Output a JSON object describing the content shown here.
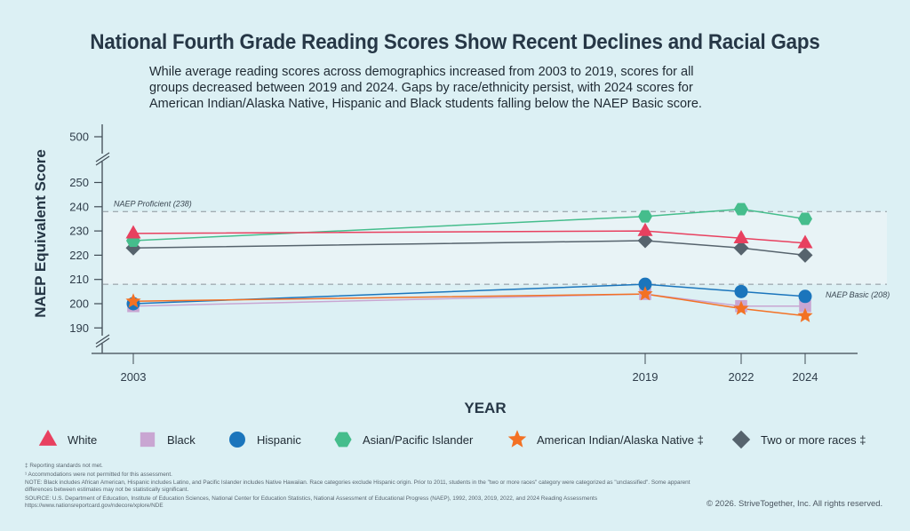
{
  "header": {
    "title": "National Fourth Grade Reading Scores Show Recent Declines and Racial Gaps",
    "subtitle_lines": [
      "While average reading scores across demographics increased from 2003 to 2019, scores for all",
      "groups decreased between 2019 and 2024. Gaps by race/ethnicity persist, with 2024 scores for",
      "American Indian/Alaska Native, Hispanic and Black students falling below the NAEP Basic score."
    ]
  },
  "chart_data": {
    "type": "line",
    "title": "National Fourth Grade Reading Scores Show Recent Declines and Racial Gaps",
    "xlabel": "YEAR",
    "ylabel": "NAEP Equivalent Score",
    "x": [
      2003,
      2019,
      2022,
      2024
    ],
    "x_tick_labels": [
      "2003",
      "2019",
      "2022",
      "2024"
    ],
    "y_tick_labels": [
      "500",
      "250",
      "240",
      "230",
      "220",
      "210",
      "200",
      "190"
    ],
    "ylim": [
      185,
      252
    ],
    "y_break_top_value": 500,
    "axis_breaks": true,
    "grid": false,
    "legend_position": "bottom",
    "reference_lines": [
      {
        "label": "NAEP Proficient (238)",
        "value": 238
      },
      {
        "label": "NAEP Basic (208)",
        "value": 208
      }
    ],
    "shaded_band": [
      208,
      238
    ],
    "series": [
      {
        "name": "White",
        "marker": "triangle",
        "color": "#e8405f",
        "values": [
          229,
          230,
          227,
          225
        ]
      },
      {
        "name": "Black",
        "marker": "square",
        "color": "#c9a6d2",
        "values": [
          199,
          204,
          199,
          199
        ]
      },
      {
        "name": "Hispanic",
        "marker": "circle",
        "color": "#1b75bc",
        "values": [
          200,
          208,
          205,
          203
        ]
      },
      {
        "name": "Asian/Pacific Islander",
        "marker": "hexagon",
        "color": "#45bd8c",
        "values": [
          226,
          236,
          239,
          235
        ]
      },
      {
        "name": "American Indian/Alaska Native ‡",
        "marker": "star",
        "color": "#f37124",
        "values": [
          201,
          204,
          198,
          195
        ]
      },
      {
        "name": "Two or more races ‡",
        "marker": "diamond",
        "color": "#56636d",
        "values": [
          223,
          226,
          223,
          220
        ]
      }
    ]
  },
  "footnotes": [
    "‡ Reporting standards not met.",
    "¹ Accommodations were not permitted for this assessment.",
    "NOTE: Black includes African American, Hispanic includes Latino, and Pacific Islander includes Native Hawaiian. Race categories exclude Hispanic origin. Prior to 2011, students in the \"two or more races\" category were categorized as \"unclassified\". Some apparent differences between estimates may not be statistically significant.",
    "SOURCE: U.S. Department of Education, Institute of Education Sciences, National Center for Education Statistics, National Assessment of Educational Progress (NAEP), 1992, 2003, 2019, 2022, and 2024 Reading Assessments",
    "https://www.nationsreportcard.gov/ndecore/xplore/NDE"
  ],
  "copyright": "© 2026. StriveTogether, Inc. All rights reserved."
}
